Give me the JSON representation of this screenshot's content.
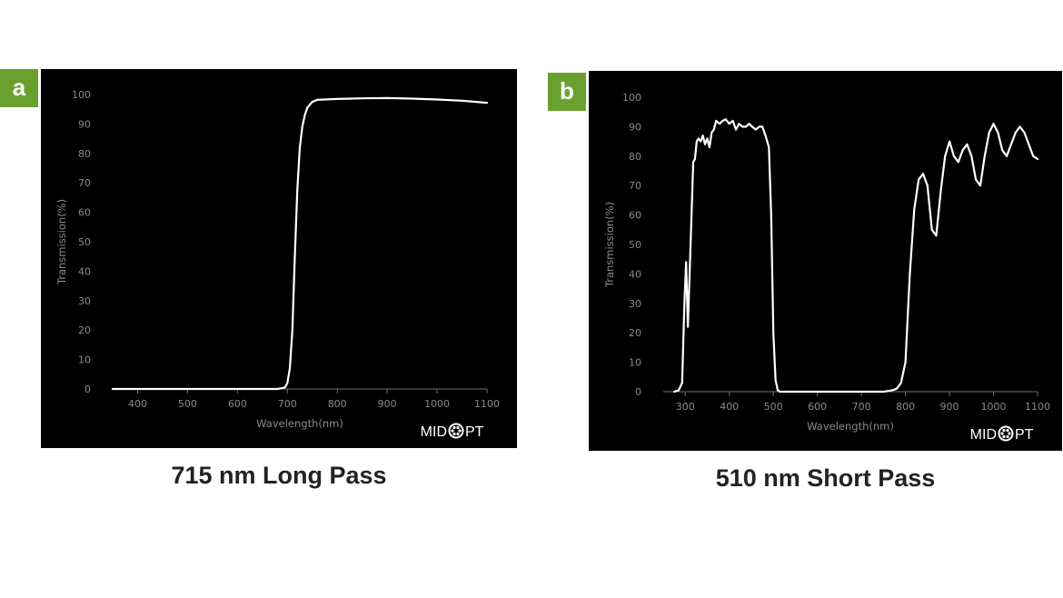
{
  "panels": [
    {
      "badge": "a",
      "caption": "715 nm Long Pass"
    },
    {
      "badge": "b",
      "caption": "510 nm Short Pass"
    }
  ],
  "logo_text": "MIDOPT",
  "colors": {
    "background": "#000000",
    "curve": "#ffffff",
    "axis_text": "#8a8a8a",
    "badge": "#6aa12e"
  },
  "chart_data": [
    {
      "type": "line",
      "title": "715 nm Long Pass",
      "xlabel": "Wavelength(nm)",
      "ylabel": "Transmission(%)",
      "xlim": [
        350,
        1100
      ],
      "ylim": [
        0,
        100
      ],
      "x_ticks": [
        400,
        500,
        600,
        700,
        800,
        900,
        1000,
        1100
      ],
      "y_ticks": [
        0,
        10,
        20,
        30,
        40,
        50,
        60,
        70,
        80,
        90,
        100
      ],
      "grid": false,
      "series": [
        {
          "x": [
            350,
            400,
            500,
            600,
            680,
            695,
            700,
            705,
            710,
            715,
            720,
            725,
            730,
            735,
            740,
            750,
            760,
            800,
            850,
            900,
            950,
            1000,
            1050,
            1100
          ],
          "y": [
            0,
            0,
            0,
            0,
            0,
            0.5,
            2,
            7,
            20,
            45,
            68,
            82,
            89,
            93,
            95.5,
            97.5,
            98.2,
            98.5,
            98.7,
            98.8,
            98.6,
            98.3,
            97.9,
            97.2
          ]
        }
      ]
    },
    {
      "type": "line",
      "title": "510 nm Short Pass",
      "xlabel": "Wavelength(nm)",
      "ylabel": "Transmission(%)",
      "xlim": [
        250,
        1100
      ],
      "ylim": [
        0,
        100
      ],
      "x_ticks": [
        300,
        400,
        500,
        600,
        700,
        800,
        900,
        1000,
        1100
      ],
      "y_ticks": [
        0,
        10,
        20,
        30,
        40,
        50,
        60,
        70,
        80,
        90,
        100
      ],
      "grid": false,
      "series": [
        {
          "x": [
            275,
            285,
            293,
            298,
            302,
            306,
            312,
            318,
            322,
            326,
            330,
            335,
            340,
            345,
            350,
            355,
            360,
            365,
            370,
            378,
            385,
            392,
            400,
            408,
            415,
            422,
            430,
            438,
            445,
            452,
            460,
            468,
            475,
            482,
            490,
            495,
            500,
            505,
            510,
            515,
            520,
            530,
            560,
            600,
            650,
            700,
            750,
            770,
            780,
            790,
            800,
            810,
            820,
            830,
            840,
            850,
            860,
            870,
            880,
            890,
            900,
            910,
            920,
            930,
            940,
            950,
            960,
            970,
            980,
            990,
            1000,
            1010,
            1020,
            1030,
            1040,
            1050,
            1060,
            1070,
            1080,
            1090,
            1100
          ],
          "y": [
            0,
            0.5,
            3,
            30,
            44,
            22,
            50,
            78,
            79,
            85,
            86,
            85,
            87,
            84,
            86,
            83,
            88,
            89,
            92,
            91,
            92,
            92.5,
            91,
            92,
            89,
            91,
            90,
            90,
            91,
            90,
            89,
            90,
            90,
            87,
            83,
            60,
            20,
            4,
            0.5,
            0,
            0,
            0,
            0,
            0,
            0,
            0,
            0,
            0.5,
            1,
            3,
            10,
            40,
            62,
            72,
            74,
            70,
            55,
            53,
            68,
            80,
            85,
            80,
            78,
            82,
            84,
            80,
            72,
            70,
            80,
            88,
            91,
            88,
            82,
            80,
            84,
            88,
            90,
            88,
            84,
            80,
            79
          ]
        }
      ]
    }
  ]
}
